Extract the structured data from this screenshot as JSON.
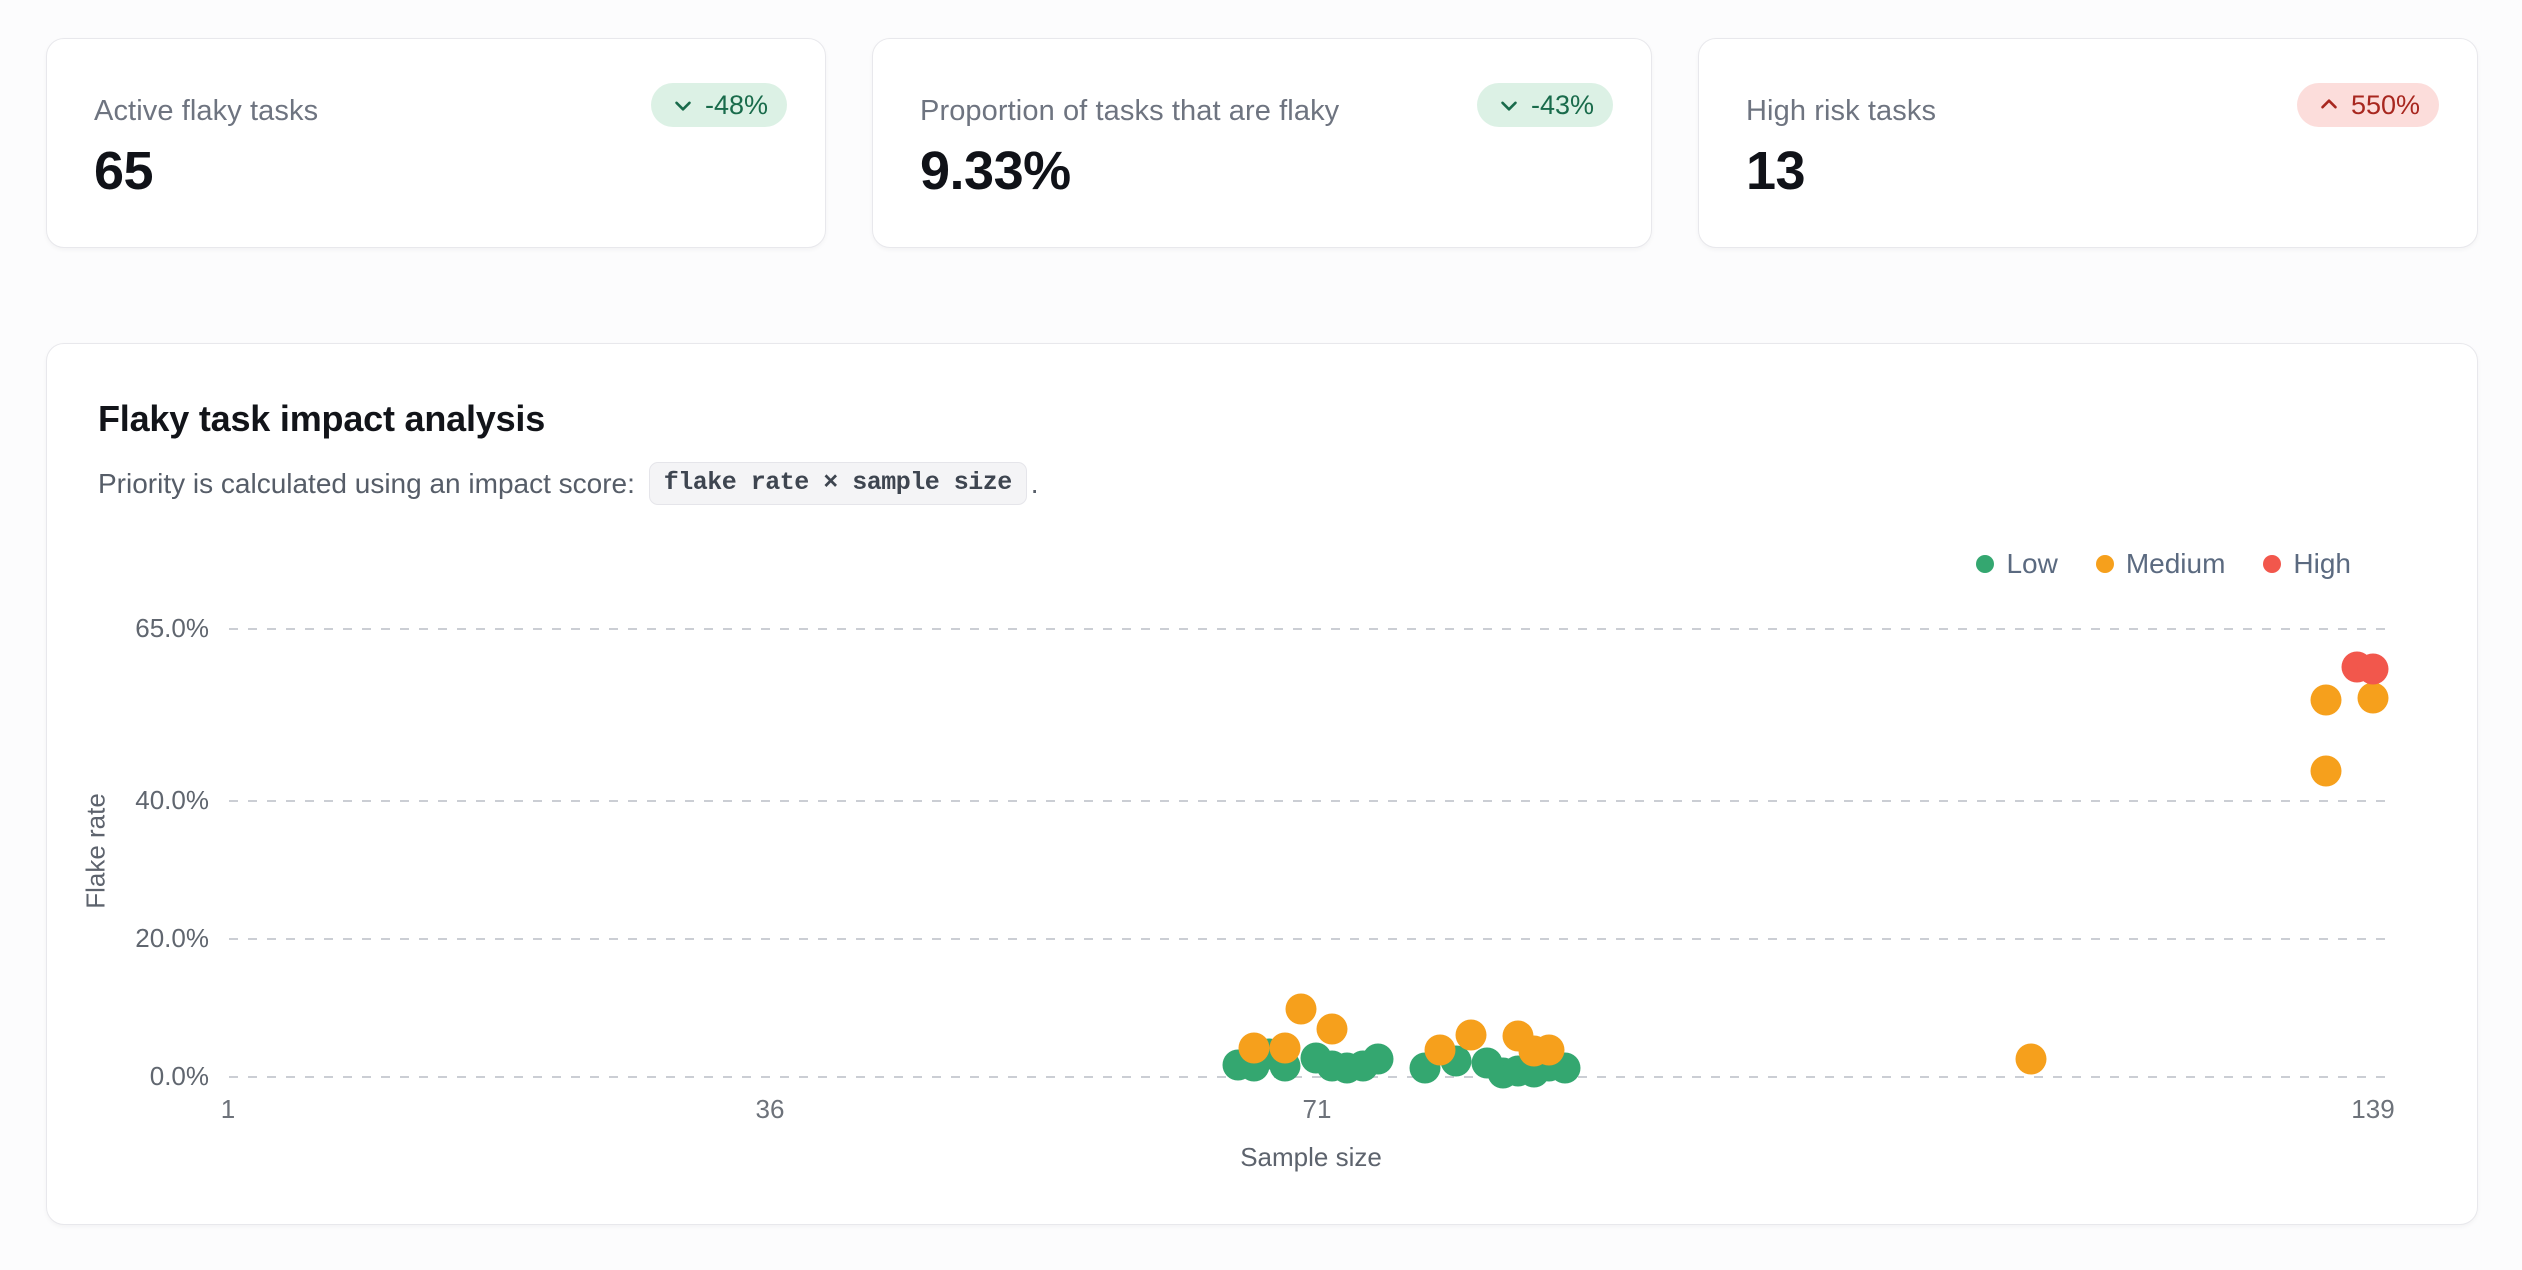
{
  "stats": [
    {
      "label": "Active flaky tasks",
      "value": "65",
      "delta": "-48%",
      "direction": "down",
      "tone": "positive"
    },
    {
      "label": "Proportion of tasks that are flaky",
      "value": "9.33%",
      "delta": "-43%",
      "direction": "down",
      "tone": "positive"
    },
    {
      "label": "High risk tasks",
      "value": "13",
      "delta": "550%",
      "direction": "up",
      "tone": "negative"
    }
  ],
  "chart": {
    "title": "Flaky task impact analysis",
    "subtitle_prefix": "Priority is calculated using an impact score: ",
    "subtitle_code": "flake rate × sample size",
    "subtitle_suffix": "."
  },
  "chart_data": {
    "type": "scatter",
    "title": "Flaky task impact analysis",
    "xlabel": "Sample size",
    "ylabel": "Flake rate",
    "xlim": [
      1,
      139
    ],
    "ylim": [
      0,
      65
    ],
    "x_ticks": [
      "1",
      "36",
      "71",
      "139"
    ],
    "y_ticks": [
      "65.0%",
      "40.0%",
      "20.0%",
      "0.0%"
    ],
    "y_gridline_values": [
      65,
      40,
      20,
      0
    ],
    "grid": "dashed-horizontal",
    "legend_position": "top-right",
    "series": [
      {
        "name": "Low",
        "color": "#34a770",
        "points": [
          [
            66,
            1.6
          ],
          [
            67,
            1.4
          ],
          [
            68,
            3.2
          ],
          [
            69,
            1.4
          ],
          [
            71,
            2.6
          ],
          [
            72,
            1.4
          ],
          [
            73,
            1.2
          ],
          [
            74,
            1.4
          ],
          [
            75,
            2.5
          ],
          [
            78,
            1.2
          ],
          [
            80,
            2.2
          ],
          [
            82,
            1.9
          ],
          [
            83,
            0.4
          ],
          [
            84,
            0.7
          ],
          [
            85,
            0.6
          ],
          [
            86,
            1.4
          ],
          [
            87,
            1.2
          ]
        ]
      },
      {
        "name": "Medium",
        "color": "#f6a01c",
        "points": [
          [
            67,
            4.1
          ],
          [
            69,
            4.1
          ],
          [
            70,
            9.7
          ],
          [
            72,
            6.8
          ],
          [
            79,
            3.8
          ],
          [
            81,
            5.9
          ],
          [
            84,
            5.8
          ],
          [
            85,
            3.6
          ],
          [
            86,
            3.8
          ],
          [
            117,
            2.5
          ],
          [
            136,
            44.2
          ],
          [
            136,
            54.5
          ],
          [
            139,
            54.8
          ]
        ]
      },
      {
        "name": "High",
        "color": "#f2574c",
        "points": [
          [
            138,
            59.4
          ],
          [
            139,
            59.1
          ]
        ]
      }
    ]
  }
}
